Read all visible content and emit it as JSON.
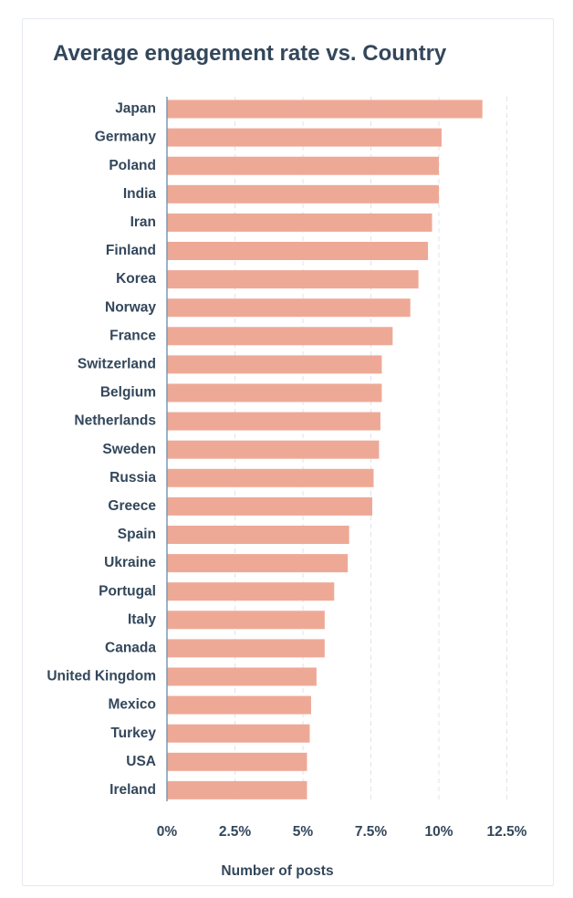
{
  "chart_data": {
    "type": "bar",
    "orientation": "horizontal",
    "title": "Average engagement rate vs. Country",
    "xlabel": "Number of posts",
    "ylabel": "",
    "xlim": [
      0,
      13
    ],
    "tick_values": [
      0,
      2.5,
      5,
      7.5,
      10,
      12.5
    ],
    "tick_labels": [
      "0%",
      "2.5%",
      "5%",
      "7.5%",
      "10%",
      "12.5%"
    ],
    "bar_color": "#eea996",
    "grid": true,
    "categories": [
      "Japan",
      "Germany",
      "Poland",
      "India",
      "Iran",
      "Finland",
      "Korea",
      "Norway",
      "France",
      "Switzerland",
      "Belgium",
      "Netherlands",
      "Sweden",
      "Russia",
      "Greece",
      "Spain",
      "Ukraine",
      "Portugal",
      "Italy",
      "Canada",
      "United Kingdom",
      "Mexico",
      "Turkey",
      "USA",
      "Ireland"
    ],
    "values": [
      11.6,
      10.1,
      10.0,
      10.0,
      9.75,
      9.6,
      9.25,
      8.95,
      8.3,
      7.9,
      7.9,
      7.85,
      7.8,
      7.6,
      7.55,
      6.7,
      6.65,
      6.15,
      5.8,
      5.8,
      5.5,
      5.3,
      5.25,
      5.15,
      5.15
    ]
  }
}
